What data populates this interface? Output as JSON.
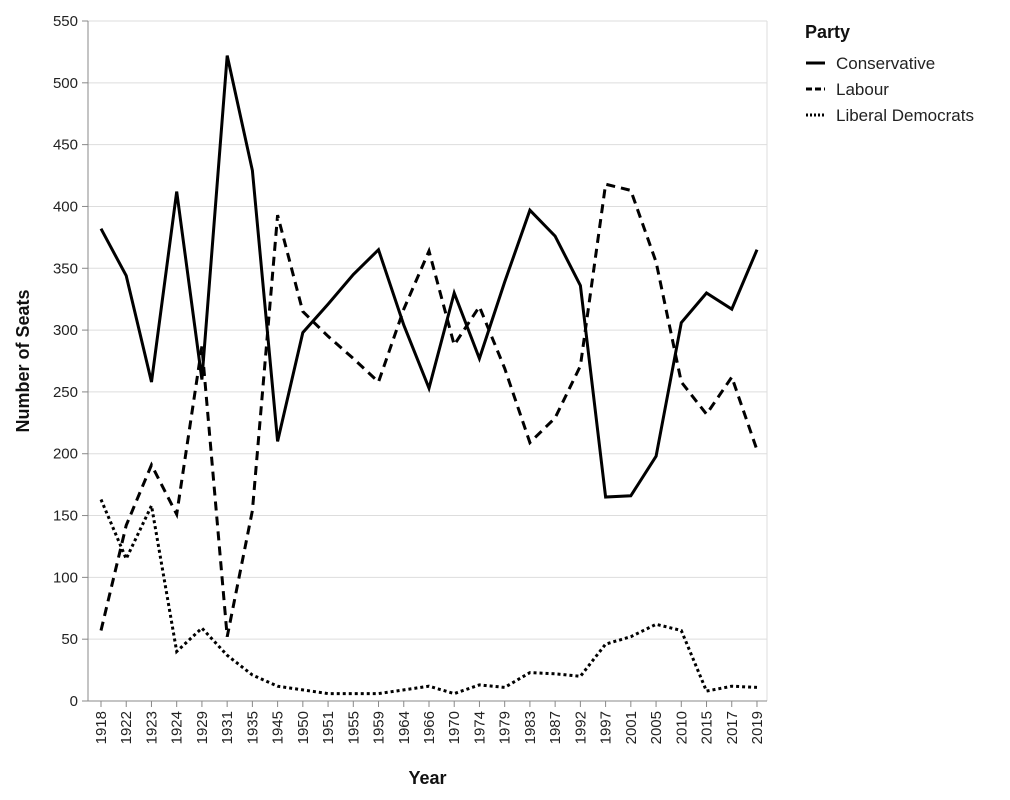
{
  "chart_data": {
    "type": "line",
    "xlabel": "Year",
    "ylabel": "Number of Seats",
    "ylim": [
      0,
      550
    ],
    "yticks": [
      0,
      50,
      100,
      150,
      200,
      250,
      300,
      350,
      400,
      450,
      500,
      550
    ],
    "grid": true,
    "legend": {
      "title": "Party",
      "position": "right"
    },
    "categories": [
      "1918",
      "1922",
      "1923",
      "1924",
      "1929",
      "1931",
      "1935",
      "1945",
      "1950",
      "1951",
      "1955",
      "1959",
      "1964",
      "1966",
      "1970",
      "1974",
      "1979",
      "1983",
      "1987",
      "1992",
      "1997",
      "2001",
      "2005",
      "2010",
      "2015",
      "2017",
      "2019"
    ],
    "series": [
      {
        "name": "Conservative",
        "dash": "solid",
        "values": [
          382,
          344,
          258,
          412,
          260,
          522,
          429,
          210,
          298,
          321,
          345,
          365,
          304,
          253,
          330,
          277,
          339,
          397,
          376,
          336,
          165,
          166,
          198,
          306,
          330,
          317,
          365
        ]
      },
      {
        "name": "Labour",
        "dash": "dashed",
        "values": [
          57,
          142,
          191,
          151,
          287,
          52,
          154,
          393,
          315,
          295,
          277,
          258,
          317,
          364,
          288,
          319,
          269,
          209,
          229,
          271,
          418,
          413,
          355,
          258,
          232,
          262,
          203
        ]
      },
      {
        "name": "Liberal Democrats",
        "dash": "dotted",
        "values": [
          163,
          115,
          158,
          40,
          59,
          37,
          21,
          12,
          9,
          6,
          6,
          6,
          9,
          12,
          6,
          13,
          11,
          23,
          22,
          20,
          46,
          52,
          62,
          57,
          8,
          12,
          11
        ]
      }
    ]
  }
}
